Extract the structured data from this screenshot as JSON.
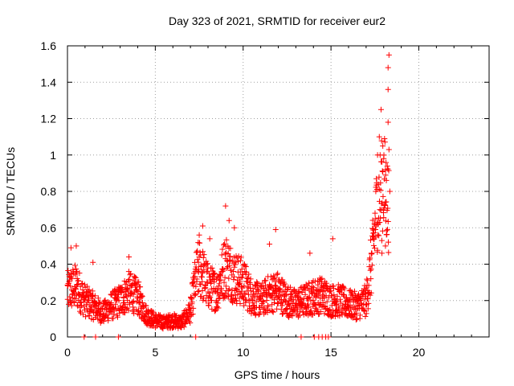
{
  "chart_data": {
    "type": "scatter",
    "title": "Day 323 of 2021, SRMTID for receiver eur2",
    "xlabel": "GPS time / hours",
    "ylabel": "SRMTID / TECUs",
    "xlim": [
      0,
      24
    ],
    "ylim": [
      0,
      1.6
    ],
    "xticks": [
      0,
      5,
      10,
      15,
      20
    ],
    "yticks": [
      0,
      0.2,
      0.4,
      0.6,
      0.8,
      1,
      1.2,
      1.4,
      1.6
    ],
    "ytick_labels": [
      "0",
      "0.2",
      "0.4",
      "0.6",
      "0.8",
      "1",
      "1.2",
      "1.4",
      "1.6"
    ],
    "grid": true,
    "grid_style": "dotted",
    "series": [
      {
        "name": "eur2",
        "marker": "+",
        "color": "#ff0000",
        "trend": [
          [
            0.0,
            0.25
          ],
          [
            0.5,
            0.28
          ],
          [
            1.0,
            0.2
          ],
          [
            1.5,
            0.17
          ],
          [
            2.0,
            0.13
          ],
          [
            2.5,
            0.17
          ],
          [
            3.0,
            0.2
          ],
          [
            3.5,
            0.25
          ],
          [
            4.0,
            0.22
          ],
          [
            4.5,
            0.12
          ],
          [
            5.0,
            0.09
          ],
          [
            5.5,
            0.08
          ],
          [
            6.0,
            0.09
          ],
          [
            6.5,
            0.08
          ],
          [
            7.0,
            0.14
          ],
          [
            7.3,
            0.32
          ],
          [
            7.5,
            0.38
          ],
          [
            8.0,
            0.28
          ],
          [
            8.5,
            0.25
          ],
          [
            9.0,
            0.4
          ],
          [
            9.5,
            0.33
          ],
          [
            10.0,
            0.3
          ],
          [
            10.5,
            0.22
          ],
          [
            11.0,
            0.2
          ],
          [
            11.5,
            0.24
          ],
          [
            12.0,
            0.25
          ],
          [
            12.5,
            0.2
          ],
          [
            13.0,
            0.18
          ],
          [
            13.5,
            0.2
          ],
          [
            14.0,
            0.22
          ],
          [
            14.5,
            0.23
          ],
          [
            15.0,
            0.2
          ],
          [
            15.5,
            0.2
          ],
          [
            16.0,
            0.18
          ],
          [
            16.5,
            0.17
          ],
          [
            17.0,
            0.2
          ],
          [
            17.3,
            0.4
          ],
          [
            17.6,
            0.7
          ],
          [
            18.0,
            0.85
          ],
          [
            18.3,
            0.7
          ]
        ],
        "points": [
          [
            0.95,
            0.0
          ],
          [
            1.6,
            0.0
          ],
          [
            2.9,
            0.0
          ],
          [
            7.3,
            0.0
          ],
          [
            13.3,
            0.0
          ],
          [
            14.05,
            0.0
          ],
          [
            14.3,
            0.0
          ],
          [
            14.5,
            0.0
          ],
          [
            14.7,
            0.0
          ],
          [
            14.85,
            0.0
          ],
          [
            0.2,
            0.49
          ],
          [
            0.5,
            0.5
          ],
          [
            1.45,
            0.41
          ],
          [
            3.5,
            0.44
          ],
          [
            7.5,
            0.56
          ],
          [
            7.7,
            0.61
          ],
          [
            8.1,
            0.54
          ],
          [
            9.0,
            0.72
          ],
          [
            9.2,
            0.64
          ],
          [
            9.5,
            0.6
          ],
          [
            11.5,
            0.51
          ],
          [
            11.85,
            0.59
          ],
          [
            13.8,
            0.46
          ],
          [
            15.1,
            0.54
          ],
          [
            17.3,
            0.46
          ],
          [
            17.4,
            0.55
          ],
          [
            17.55,
            0.8
          ],
          [
            17.65,
            1.0
          ],
          [
            17.75,
            1.1
          ],
          [
            17.85,
            1.25
          ],
          [
            17.95,
            1.05
          ],
          [
            18.0,
            0.98
          ],
          [
            18.1,
            0.92
          ],
          [
            18.15,
            0.86
          ],
          [
            18.25,
            1.18
          ],
          [
            18.3,
            1.03
          ],
          [
            18.35,
            0.8
          ],
          [
            18.1,
            0.5
          ],
          [
            17.9,
            0.46
          ],
          [
            18.25,
            1.36
          ],
          [
            18.25,
            1.48
          ],
          [
            18.3,
            1.55
          ]
        ]
      }
    ]
  }
}
